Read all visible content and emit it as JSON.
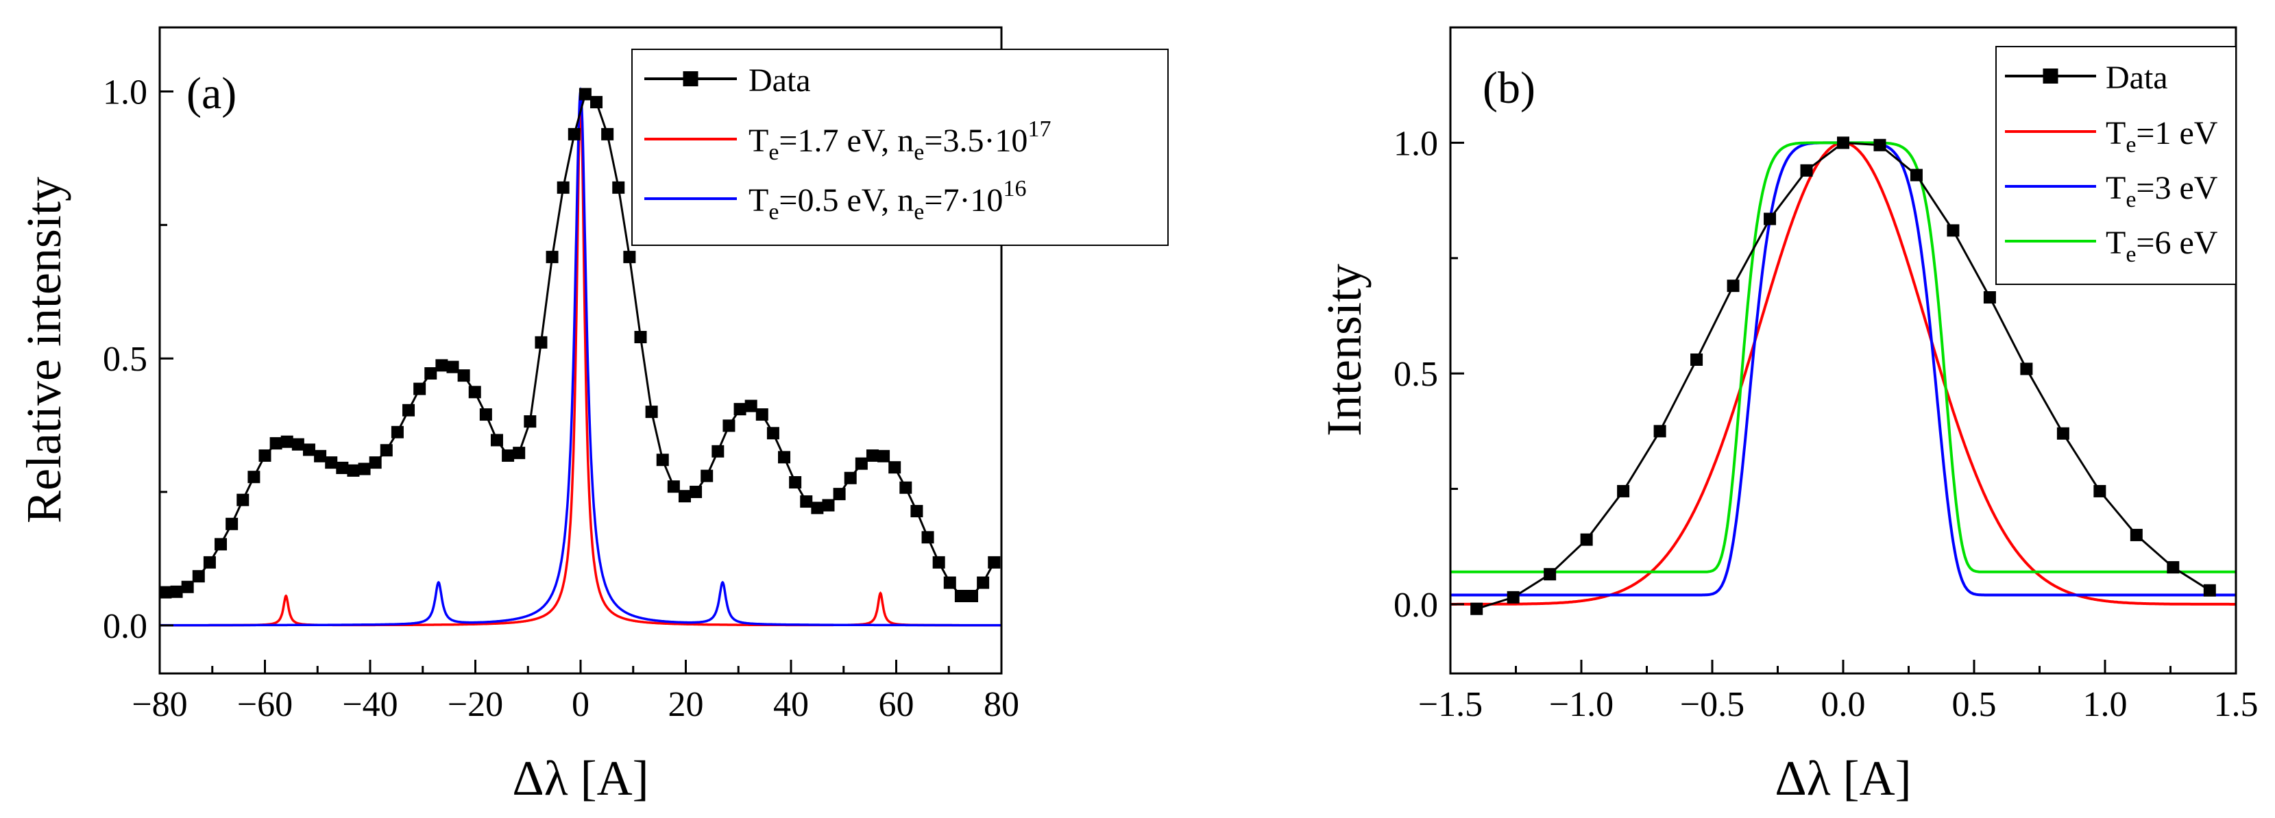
{
  "chart_data": [
    {
      "type": "line",
      "panel_label": "(a)",
      "xlabel": "Δλ [A]",
      "ylabel": "Relative intensity",
      "xlim": [
        -80,
        80
      ],
      "ylim": [
        -0.09,
        1.12
      ],
      "xticks": [
        "−80",
        "−60",
        "−40",
        "−20",
        "0",
        "20",
        "40",
        "60",
        "80"
      ],
      "yticks": [
        "0.0",
        "0.5",
        "1.0"
      ],
      "legend_position": "top-right",
      "series": [
        {
          "name": "Data",
          "color": "#000000",
          "marker": "square",
          "x": [
            -78.9,
            -76.8,
            -74.7,
            -72.6,
            -70.5,
            -68.4,
            -66.3,
            -64.2,
            -62.1,
            -60,
            -57.9,
            -55.8,
            -53.7,
            -51.6,
            -49.5,
            -47.4,
            -45.3,
            -43.2,
            -41.1,
            -39,
            -36.9,
            -34.8,
            -32.7,
            -30.6,
            -28.5,
            -26.4,
            -24.3,
            -22.2,
            -20.1,
            -18,
            -15.9,
            -13.8,
            -11.7,
            -9.6,
            -7.5,
            -5.4,
            -3.3,
            -1.2,
            0.9,
            3,
            5.1,
            7.2,
            9.3,
            11.4,
            13.5,
            15.6,
            17.7,
            19.8,
            21.9,
            24,
            26.1,
            28.2,
            30.3,
            32.4,
            34.5,
            36.6,
            38.7,
            40.8,
            42.9,
            45,
            47.1,
            49.2,
            51.3,
            53.4,
            55.5,
            57.6,
            59.7,
            61.8,
            63.9,
            66,
            68.1,
            70.2,
            72.3,
            74.4,
            76.5,
            78.6
          ],
          "y": [
            0.062,
            0.063,
            0.072,
            0.092,
            0.118,
            0.152,
            0.19,
            0.235,
            0.278,
            0.318,
            0.341,
            0.344,
            0.339,
            0.329,
            0.317,
            0.305,
            0.295,
            0.29,
            0.293,
            0.305,
            0.328,
            0.362,
            0.403,
            0.443,
            0.472,
            0.487,
            0.484,
            0.468,
            0.437,
            0.395,
            0.347,
            0.318,
            0.323,
            0.382,
            0.53,
            0.69,
            0.82,
            0.92,
            0.995,
            0.98,
            0.92,
            0.82,
            0.69,
            0.54,
            0.4,
            0.31,
            0.26,
            0.242,
            0.25,
            0.28,
            0.326,
            0.374,
            0.405,
            0.411,
            0.395,
            0.36,
            0.315,
            0.268,
            0.232,
            0.22,
            0.225,
            0.246,
            0.276,
            0.303,
            0.318,
            0.317,
            0.296,
            0.258,
            0.214,
            0.165,
            0.118,
            0.08,
            0.055,
            0.055,
            0.08,
            0.118
          ]
        },
        {
          "name": "Te=1.7 eV, ne=3.5·10^17",
          "color": "#ff0000",
          "peaks": [
            {
              "x": -56,
              "height": 0.055,
              "hwhm": 0.6
            },
            {
              "x": 0,
              "height": 0.985,
              "hwhm": 0.95
            },
            {
              "x": 57,
              "height": 0.06,
              "hwhm": 0.6
            }
          ]
        },
        {
          "name": "Te=0.5 eV, ne=7·10^16",
          "color": "#0000ff",
          "peaks": [
            {
              "x": -27,
              "height": 0.078,
              "hwhm": 0.8
            },
            {
              "x": 0,
              "height": 1.0,
              "hwhm": 1.35
            },
            {
              "x": 27,
              "height": 0.078,
              "hwhm": 0.8
            }
          ]
        }
      ],
      "legend": [
        {
          "base": "Data"
        },
        {
          "t_base": "T",
          "t_sub": "e",
          "t_rest": "=1.7 eV, n",
          "n_sub": "e",
          "n_rest": "=3.5·10",
          "sup": "17"
        },
        {
          "t_base": "T",
          "t_sub": "e",
          "t_rest": "=0.5 eV, n",
          "n_sub": "e",
          "n_rest": "=7·10",
          "sup": "16"
        }
      ]
    },
    {
      "type": "line",
      "panel_label": "(b)",
      "xlabel": "Δλ [A]",
      "ylabel": "Intensity",
      "xlim": [
        -1.5,
        1.5
      ],
      "ylim": [
        -0.15,
        1.25
      ],
      "xticks": [
        "−1.5",
        "−1.0",
        "−0.5",
        "0.0",
        "0.5",
        "1.0",
        "1.5"
      ],
      "yticks": [
        "0.0",
        "0.5",
        "1.0"
      ],
      "legend_position": "top-right",
      "series": [
        {
          "name": "Data",
          "color": "#000000",
          "marker": "square",
          "x": [
            -1.4,
            -1.26,
            -1.12,
            -0.98,
            -0.84,
            -0.7,
            -0.56,
            -0.42,
            -0.28,
            -0.14,
            0,
            0.14,
            0.28,
            0.42,
            0.56,
            0.7,
            0.84,
            0.98,
            1.12,
            1.26,
            1.4
          ],
          "y": [
            -0.01,
            0.015,
            0.065,
            0.14,
            0.245,
            0.375,
            0.53,
            0.69,
            0.835,
            0.94,
            1.0,
            0.995,
            0.93,
            0.81,
            0.665,
            0.51,
            0.37,
            0.245,
            0.15,
            0.08,
            0.03
          ]
        },
        {
          "name": "Te=1 eV",
          "color": "#ff0000",
          "baseline": 0.0,
          "center": 0.0,
          "width": 0.45,
          "power": 2
        },
        {
          "name": "Te=3 eV",
          "color": "#0000ff",
          "baseline": 0.02,
          "center": 0.0,
          "width": 0.37,
          "power": 6
        },
        {
          "name": "Te=6 eV",
          "color": "#00e000",
          "baseline": 0.07,
          "center": 0.0,
          "width": 0.4,
          "power": 8
        }
      ],
      "legend": [
        {
          "base": "Data"
        },
        {
          "t_base": "T",
          "t_sub": "e",
          "t_rest": "=1 eV"
        },
        {
          "t_base": "T",
          "t_sub": "e",
          "t_rest": "=3 eV"
        },
        {
          "t_base": "T",
          "t_sub": "e",
          "t_rest": "=6 eV"
        }
      ]
    }
  ]
}
